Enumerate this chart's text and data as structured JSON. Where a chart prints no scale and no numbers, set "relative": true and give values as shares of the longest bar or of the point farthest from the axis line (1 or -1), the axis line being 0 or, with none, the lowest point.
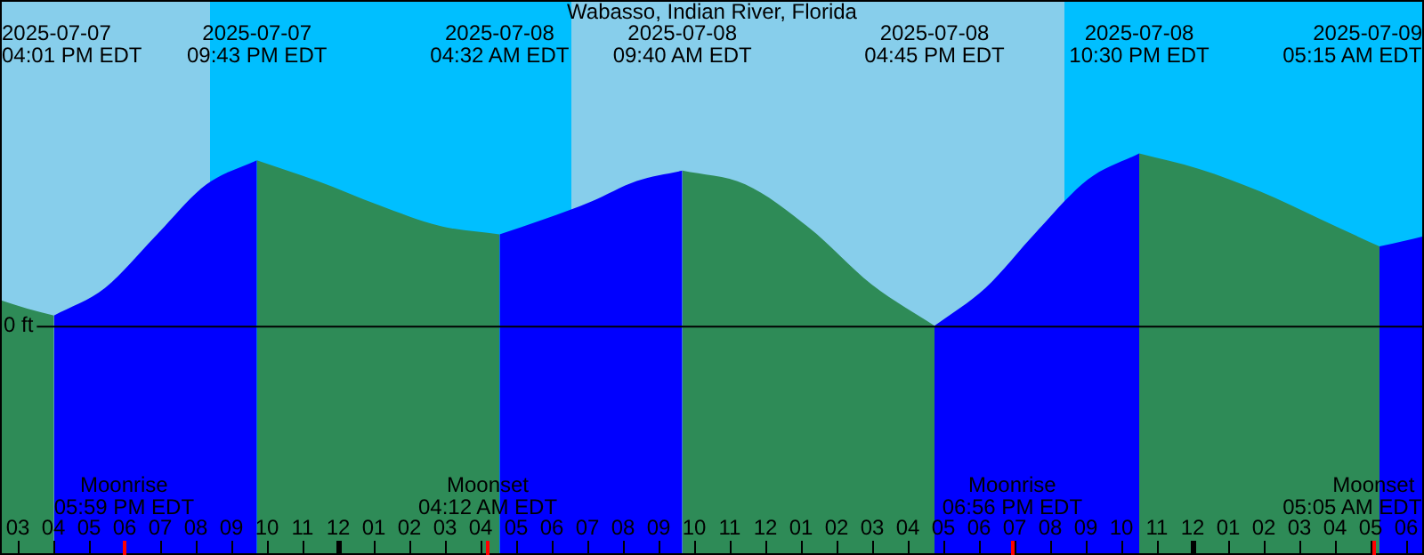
{
  "chart_data": {
    "type": "area",
    "title": "Wabasso, Indian River, Florida",
    "relative": true,
    "legend": false,
    "xlim": [
      "2025-07-07T14:30",
      "2025-07-09T06:30"
    ],
    "xticks": [
      {
        "value": "2025-07-07T15:00",
        "label": "03"
      },
      {
        "value": "2025-07-07T16:00",
        "label": "04"
      },
      {
        "value": "2025-07-07T17:00",
        "label": "05"
      },
      {
        "value": "2025-07-07T18:00",
        "label": "06"
      },
      {
        "value": "2025-07-07T19:00",
        "label": "07"
      },
      {
        "value": "2025-07-07T20:00",
        "label": "08"
      },
      {
        "value": "2025-07-07T21:00",
        "label": "09"
      },
      {
        "value": "2025-07-07T22:00",
        "label": "10"
      },
      {
        "value": "2025-07-07T23:00",
        "label": "11"
      },
      {
        "value": "2025-07-08T00:00",
        "label": "12"
      },
      {
        "value": "2025-07-08T01:00",
        "label": "01"
      },
      {
        "value": "2025-07-08T02:00",
        "label": "02"
      },
      {
        "value": "2025-07-08T03:00",
        "label": "03"
      },
      {
        "value": "2025-07-08T04:00",
        "label": "04"
      },
      {
        "value": "2025-07-08T05:00",
        "label": "05"
      },
      {
        "value": "2025-07-08T06:00",
        "label": "06"
      },
      {
        "value": "2025-07-08T07:00",
        "label": "07"
      },
      {
        "value": "2025-07-08T08:00",
        "label": "08"
      },
      {
        "value": "2025-07-08T09:00",
        "label": "09"
      },
      {
        "value": "2025-07-08T10:00",
        "label": "10"
      },
      {
        "value": "2025-07-08T11:00",
        "label": "11"
      },
      {
        "value": "2025-07-08T12:00",
        "label": "12"
      },
      {
        "value": "2025-07-08T13:00",
        "label": "01"
      },
      {
        "value": "2025-07-08T14:00",
        "label": "02"
      },
      {
        "value": "2025-07-08T15:00",
        "label": "03"
      },
      {
        "value": "2025-07-08T16:00",
        "label": "04"
      },
      {
        "value": "2025-07-08T17:00",
        "label": "05"
      },
      {
        "value": "2025-07-08T18:00",
        "label": "06"
      },
      {
        "value": "2025-07-08T19:00",
        "label": "07"
      },
      {
        "value": "2025-07-08T20:00",
        "label": "08"
      },
      {
        "value": "2025-07-08T21:00",
        "label": "09"
      },
      {
        "value": "2025-07-08T22:00",
        "label": "10"
      },
      {
        "value": "2025-07-08T23:00",
        "label": "11"
      },
      {
        "value": "2025-07-09T00:00",
        "label": "12"
      },
      {
        "value": "2025-07-09T01:00",
        "label": "01"
      },
      {
        "value": "2025-07-09T02:00",
        "label": "02"
      },
      {
        "value": "2025-07-09T03:00",
        "label": "03"
      },
      {
        "value": "2025-07-09T04:00",
        "label": "04"
      },
      {
        "value": "2025-07-09T05:00",
        "label": "05"
      },
      {
        "value": "2025-07-09T06:00",
        "label": "06"
      }
    ],
    "series": [
      {
        "color": "#0000ff",
        "x": [
          "2025-07-07T16:01",
          "2025-07-07T17:27",
          "2025-07-07T18:52",
          "2025-07-07T20:18",
          "2025-07-07T21:43",
          "2025-07-08T01:00",
          "2025-07-08T04:32",
          "2025-07-08T05:49",
          "2025-07-08T07:06",
          "2025-07-08T08:23",
          "2025-07-08T09:40",
          "2025-07-08T13:00",
          "2025-07-08T16:45",
          "2025-07-08T18:11",
          "2025-07-08T19:38",
          "2025-07-08T21:04",
          "2025-07-08T22:30",
          "2025-07-09T02:00",
          "2025-07-09T05:15",
          "2025-07-09T05:54",
          "2025-07-09T06:30"
        ],
        "values": [
          0.06,
          0.22,
          0.52,
          0.82,
          0.96,
          null,
          0.53,
          0.62,
          0.72,
          0.84,
          0.9,
          null,
          0,
          0.22,
          0.55,
          0.85,
          1,
          null,
          0.46,
          0.49,
          0.52
        ]
      },
      {
        "color": "#2e8b57",
        "x": [
          "2025-07-07T14:30",
          "2025-07-07T15:16",
          "2025-07-07T16:01",
          "2025-07-07T19:00",
          "2025-07-07T21:43",
          "2025-07-07T23:25",
          "2025-07-08T01:08",
          "2025-07-08T02:50",
          "2025-07-08T04:32",
          "2025-07-08T07:00",
          "2025-07-08T09:40",
          "2025-07-08T11:26",
          "2025-07-08T13:13",
          "2025-07-08T14:59",
          "2025-07-08T16:45",
          "2025-07-08T19:00",
          "2025-07-08T22:30",
          "2025-07-09T00:11",
          "2025-07-09T01:53",
          "2025-07-09T03:34",
          "2025-07-09T05:15"
        ],
        "values": [
          0.15,
          0.1,
          0.06,
          null,
          0.96,
          0.84,
          0.7,
          0.58,
          0.53,
          null,
          0.9,
          0.82,
          0.57,
          0.24,
          0,
          null,
          1,
          0.91,
          0.78,
          0.62,
          0.46
        ]
      }
    ],
    "bands": [
      {
        "axis": "x",
        "from": "2025-07-07T14:30",
        "to": "2025-07-07T20:24",
        "color": "#87ceeb"
      },
      {
        "axis": "x",
        "from": "2025-07-07T20:24",
        "to": "2025-07-08T06:33",
        "color": "#00bfff"
      },
      {
        "axis": "x",
        "from": "2025-07-08T06:33",
        "to": "2025-07-08T20:24",
        "color": "#87ceeb"
      },
      {
        "axis": "x",
        "from": "2025-07-08T20:24",
        "to": "2025-07-09T06:30",
        "color": "#00bfff"
      }
    ],
    "ref_lines": [
      {
        "axis": "y",
        "value": 0,
        "label": "0 ft",
        "color": "#000000"
      },
      {
        "axis": "x",
        "value": "2025-07-07T17:59",
        "label": "Moonrise\n05:59 PM EDT",
        "color": "#ff0000"
      },
      {
        "axis": "x",
        "value": "2025-07-08T04:12",
        "label": "Moonset\n04:12 AM EDT",
        "color": "#ff0000"
      },
      {
        "axis": "x",
        "value": "2025-07-08T18:56",
        "label": "Moonrise\n06:56 PM EDT",
        "color": "#ff0000"
      },
      {
        "axis": "x",
        "value": "2025-07-09T05:05",
        "label": "Moonset\n05:05 AM EDT",
        "color": "#ff0000"
      }
    ],
    "annotations": [
      "2025-07-07\n04:01 PM EDT",
      "2025-07-07\n09:43 PM EDT",
      "2025-07-08\n04:32 AM EDT",
      "2025-07-08\n09:40 AM EDT",
      "2025-07-08\n04:45 PM EDT",
      "2025-07-08\n10:30 PM EDT",
      "2025-07-09\n05:15 AM EDT"
    ]
  }
}
